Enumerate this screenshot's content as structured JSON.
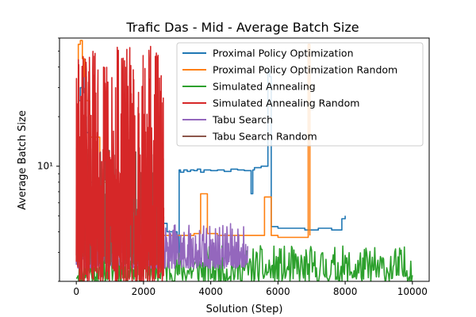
{
  "chart_data": {
    "type": "line",
    "title": "Trafic Das - Mid - Average Batch Size",
    "xlabel": "Solution (Step)",
    "ylabel": "Average Batch Size",
    "xlim": [
      -500,
      10500
    ],
    "ylim": [
      2,
      60
    ],
    "yscale": "log",
    "xticks": [
      0,
      2000,
      4000,
      6000,
      8000,
      10000
    ],
    "xtick_labels": [
      "0",
      "2000",
      "4000",
      "6000",
      "8000",
      "10000"
    ],
    "ytick_labels": [
      "10¹"
    ],
    "grid": false,
    "legend_position": "top-right",
    "series": [
      {
        "name": "Proximal Policy Optimization",
        "color": "#1f77b4",
        "kind": "step",
        "x": [
          0,
          60,
          120,
          180,
          220,
          260,
          300,
          400,
          600,
          900,
          1200,
          1500,
          1800,
          2100,
          2400,
          2700,
          3000,
          3060,
          3100,
          3200,
          3300,
          3400,
          3500,
          3600,
          3700,
          3800,
          4000,
          4200,
          4400,
          4600,
          4800,
          5000,
          5200,
          5250,
          5300,
          5500,
          5700,
          5750,
          5800,
          6000,
          6400,
          6800,
          7200,
          7600,
          7900,
          8000
        ],
        "y": [
          5,
          25,
          30,
          35,
          28,
          20,
          16,
          8,
          6,
          5,
          5,
          4.5,
          4.5,
          4.5,
          4.5,
          4,
          3,
          9.5,
          9.2,
          9.5,
          9.3,
          9.5,
          9.4,
          9.6,
          9.2,
          9.5,
          9.4,
          9.5,
          9.3,
          9.6,
          9.5,
          9.4,
          6.8,
          9.5,
          9.8,
          10,
          38,
          35,
          4.3,
          4.2,
          4.2,
          4.1,
          4.2,
          4.1,
          4.8,
          5
        ]
      },
      {
        "name": "Proximal Policy Optimization Random",
        "color": "#ff7f0e",
        "kind": "step",
        "x": [
          0,
          30,
          60,
          120,
          180,
          240,
          300,
          400,
          700,
          1000,
          1500,
          2000,
          2500,
          3000,
          3500,
          3700,
          3900,
          4200,
          4600,
          5000,
          5400,
          5600,
          5800,
          6000,
          6500,
          6900,
          6950
        ],
        "y": [
          5,
          20,
          55,
          58,
          45,
          35,
          25,
          15,
          8,
          6,
          4.5,
          4,
          3.8,
          3.8,
          3.9,
          6.8,
          3.9,
          3.8,
          3.8,
          3.8,
          3.8,
          6.5,
          3.8,
          3.7,
          3.7,
          55,
          3.8
        ]
      },
      {
        "name": "Simulated Annealing",
        "color": "#2ca02c",
        "kind": "noise",
        "xmin": 0,
        "xmax": 10000,
        "low": 2,
        "high": 3.3,
        "seed": 11
      },
      {
        "name": "Simulated Annealing Random",
        "color": "#d62728",
        "kind": "noise",
        "xmin": 0,
        "xmax": 2600,
        "low": 2,
        "high": 58,
        "seed": 29
      },
      {
        "name": "Tabu Search",
        "color": "#9467bd",
        "kind": "noise",
        "xmin": 0,
        "xmax": 5100,
        "low": 2.4,
        "high": 4.5,
        "seed": 7
      },
      {
        "name": "Tabu Search Random",
        "color": "#8c564b",
        "kind": "noise",
        "xmin": 0,
        "xmax": 2600,
        "low": 2.5,
        "high": 13,
        "seed": 41
      }
    ]
  }
}
